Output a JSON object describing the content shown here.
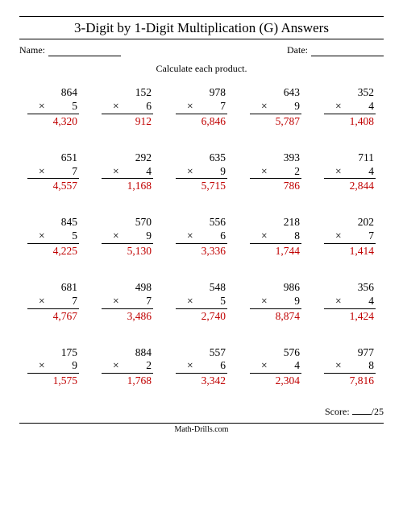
{
  "title": "3-Digit by 1-Digit Multiplication (G) Answers",
  "name_label": "Name:",
  "date_label": "Date:",
  "instruction": "Calculate each product.",
  "mult_sign": "×",
  "score_label": "Score:",
  "score_total": "/25",
  "footer": "Math-Drills.com",
  "colors": {
    "answer": "#c00000",
    "text": "#000000",
    "background": "#ffffff"
  },
  "font": {
    "family": "Times New Roman",
    "title_size": 17,
    "body_size": 13.5,
    "small_size": 12
  },
  "layout": {
    "cols": 5,
    "rows": 5
  },
  "problems": [
    {
      "a": "864",
      "b": "5",
      "ans": "4,320"
    },
    {
      "a": "152",
      "b": "6",
      "ans": "912"
    },
    {
      "a": "978",
      "b": "7",
      "ans": "6,846"
    },
    {
      "a": "643",
      "b": "9",
      "ans": "5,787"
    },
    {
      "a": "352",
      "b": "4",
      "ans": "1,408"
    },
    {
      "a": "651",
      "b": "7",
      "ans": "4,557"
    },
    {
      "a": "292",
      "b": "4",
      "ans": "1,168"
    },
    {
      "a": "635",
      "b": "9",
      "ans": "5,715"
    },
    {
      "a": "393",
      "b": "2",
      "ans": "786"
    },
    {
      "a": "711",
      "b": "4",
      "ans": "2,844"
    },
    {
      "a": "845",
      "b": "5",
      "ans": "4,225"
    },
    {
      "a": "570",
      "b": "9",
      "ans": "5,130"
    },
    {
      "a": "556",
      "b": "6",
      "ans": "3,336"
    },
    {
      "a": "218",
      "b": "8",
      "ans": "1,744"
    },
    {
      "a": "202",
      "b": "7",
      "ans": "1,414"
    },
    {
      "a": "681",
      "b": "7",
      "ans": "4,767"
    },
    {
      "a": "498",
      "b": "7",
      "ans": "3,486"
    },
    {
      "a": "548",
      "b": "5",
      "ans": "2,740"
    },
    {
      "a": "986",
      "b": "9",
      "ans": "8,874"
    },
    {
      "a": "356",
      "b": "4",
      "ans": "1,424"
    },
    {
      "a": "175",
      "b": "9",
      "ans": "1,575"
    },
    {
      "a": "884",
      "b": "2",
      "ans": "1,768"
    },
    {
      "a": "557",
      "b": "6",
      "ans": "3,342"
    },
    {
      "a": "576",
      "b": "4",
      "ans": "2,304"
    },
    {
      "a": "977",
      "b": "8",
      "ans": "7,816"
    }
  ]
}
